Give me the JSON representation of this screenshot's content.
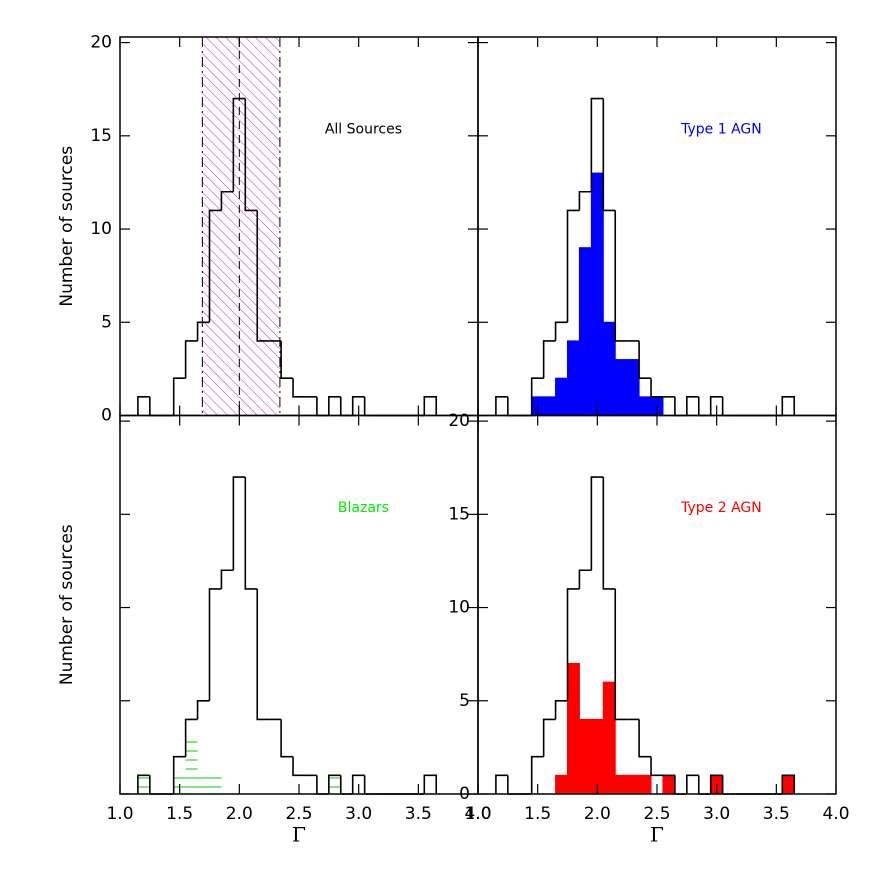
{
  "chart_data": [
    {
      "type": "histogram",
      "label": "All Sources",
      "label_color": "#000000",
      "bins": [
        1.15,
        1.25,
        1.35,
        1.45,
        1.55,
        1.65,
        1.75,
        1.85,
        1.95,
        2.05,
        2.15,
        2.25,
        2.35,
        2.45,
        2.55,
        2.65,
        2.75,
        2.85,
        2.95,
        3.05,
        3.15,
        3.25,
        3.35,
        3.45,
        3.55,
        3.65
      ],
      "series": [
        {
          "color": "#000000",
          "fill": "outline",
          "values": [
            1,
            0,
            0,
            2,
            4,
            5,
            11,
            12,
            17,
            11,
            4,
            4,
            2,
            1,
            1,
            0,
            1,
            0,
            1,
            0,
            0,
            0,
            0,
            0,
            1
          ]
        }
      ],
      "band": {
        "color": "#cc33cc",
        "range": [
          1.69,
          2.34
        ],
        "center": 2.0
      },
      "xlim": [
        1,
        4
      ],
      "ylim": [
        0,
        20.3
      ],
      "xticks": [
        1,
        1.5,
        2,
        2.5,
        3,
        3.5,
        4
      ],
      "xtick_labels": false,
      "yticks": [
        0,
        5,
        10,
        15,
        20
      ],
      "ytick_labels": true,
      "ylabel": "Number of sources"
    },
    {
      "type": "histogram",
      "label": "Type 1 AGN",
      "label_color": "#0000ff",
      "bins": [
        1.15,
        1.25,
        1.35,
        1.45,
        1.55,
        1.65,
        1.75,
        1.85,
        1.95,
        2.05,
        2.15,
        2.25,
        2.35,
        2.45,
        2.55,
        2.65,
        2.75,
        2.85,
        2.95,
        3.05,
        3.15,
        3.25,
        3.35,
        3.45,
        3.55,
        3.65
      ],
      "series": [
        {
          "color": "#000000",
          "fill": "outline",
          "values": [
            1,
            0,
            0,
            2,
            4,
            5,
            11,
            12,
            17,
            11,
            4,
            4,
            2,
            1,
            1,
            0,
            1,
            0,
            1,
            0,
            0,
            0,
            0,
            0,
            1
          ]
        },
        {
          "color": "#0000ff",
          "fill": "solid",
          "values": [
            0,
            0,
            0,
            1,
            1,
            2,
            4,
            9,
            13,
            5,
            3,
            3,
            1,
            1,
            0,
            0,
            0,
            0,
            0,
            0,
            0,
            0,
            0,
            0,
            0
          ]
        }
      ],
      "xlim": [
        1,
        4
      ],
      "ylim": [
        0,
        20.3
      ],
      "xticks": [
        1,
        1.5,
        2,
        2.5,
        3,
        3.5,
        4
      ],
      "xtick_labels": false,
      "yticks": [
        0,
        5,
        10,
        15,
        20
      ],
      "ytick_labels": false
    },
    {
      "type": "histogram",
      "label": "Blazars",
      "label_color": "#00ee00",
      "bins": [
        1.15,
        1.25,
        1.35,
        1.45,
        1.55,
        1.65,
        1.75,
        1.85,
        1.95,
        2.05,
        2.15,
        2.25,
        2.35,
        2.45,
        2.55,
        2.65,
        2.75,
        2.85,
        2.95,
        3.05,
        3.15,
        3.25,
        3.35,
        3.45,
        3.55,
        3.65
      ],
      "series": [
        {
          "color": "#000000",
          "fill": "outline",
          "values": [
            1,
            0,
            0,
            2,
            4,
            5,
            11,
            12,
            17,
            11,
            4,
            4,
            2,
            1,
            1,
            0,
            1,
            0,
            1,
            0,
            0,
            0,
            0,
            0,
            1
          ]
        },
        {
          "color": "#00cc00",
          "fill": "hatch",
          "values": [
            1,
            0,
            0,
            1,
            3,
            1,
            1,
            0,
            0,
            0,
            0,
            0,
            0,
            0,
            0,
            0,
            1,
            0,
            0,
            0,
            0,
            0,
            0,
            0,
            0
          ]
        }
      ],
      "xlim": [
        1,
        4
      ],
      "ylim": [
        0,
        20.3
      ],
      "xticks": [
        {
          "value": 1,
          "label": "1.0"
        },
        1.5,
        {
          "value": 2,
          "label": "2.0"
        },
        2.5,
        {
          "value": 3,
          "label": "3.0"
        },
        3.5,
        {
          "value": 4,
          "label": "4.0"
        }
      ],
      "xtick_labels": true,
      "yticks": [
        0,
        5,
        10,
        15,
        20
      ],
      "ytick_labels": false,
      "xlabel": "Γ",
      "ylabel": "Number of sources"
    },
    {
      "type": "histogram",
      "label": "Type 2 AGN",
      "label_color": "#ff0000",
      "bins": [
        1.15,
        1.25,
        1.35,
        1.45,
        1.55,
        1.65,
        1.75,
        1.85,
        1.95,
        2.05,
        2.15,
        2.25,
        2.35,
        2.45,
        2.55,
        2.65,
        2.75,
        2.85,
        2.95,
        3.05,
        3.15,
        3.25,
        3.35,
        3.45,
        3.55,
        3.65
      ],
      "series": [
        {
          "color": "#000000",
          "fill": "outline",
          "values": [
            1,
            0,
            0,
            2,
            4,
            5,
            11,
            12,
            17,
            11,
            4,
            4,
            2,
            1,
            1,
            0,
            1,
            0,
            1,
            0,
            0,
            0,
            0,
            0,
            1
          ]
        },
        {
          "color": "#ff0000",
          "fill": "solid",
          "values": [
            0,
            0,
            0,
            0,
            0,
            1,
            7,
            4,
            4,
            6,
            1,
            1,
            1,
            0,
            1,
            0,
            0,
            0,
            1,
            0,
            0,
            0,
            0,
            0,
            1
          ]
        }
      ],
      "xlim": [
        1,
        4
      ],
      "ylim": [
        0,
        20.3
      ],
      "xticks": [
        {
          "value": 1,
          "label": "1.0"
        },
        1.5,
        {
          "value": 2,
          "label": "2.0"
        },
        2.5,
        {
          "value": 3,
          "label": "3.0"
        },
        3.5,
        {
          "value": 4,
          "label": "4.0"
        }
      ],
      "xtick_labels": true,
      "yticks": [
        0,
        5,
        10,
        15,
        20
      ],
      "ytick_labels": true,
      "xlabel": "Γ"
    }
  ]
}
